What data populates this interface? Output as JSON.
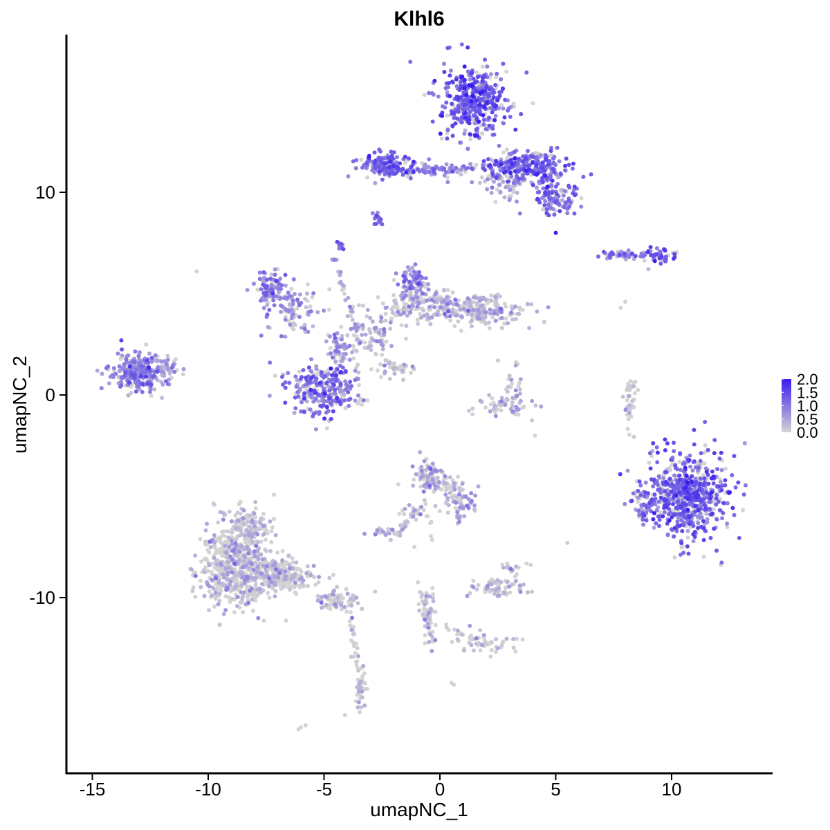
{
  "chart_data": {
    "type": "scatter",
    "title": "Klhl6",
    "xlabel": "umapNC_1",
    "ylabel": "umapNC_2",
    "xlim": [
      -16.5,
      14.5
    ],
    "ylim": [
      -18.5,
      17.8
    ],
    "x_ticks": [
      -15,
      -10,
      -5,
      0,
      5,
      10
    ],
    "x_tick_labels": [
      "-15",
      "-10",
      "-5",
      "0",
      "5",
      "10"
    ],
    "y_ticks": [
      -10,
      0,
      10
    ],
    "y_tick_labels": [
      "-10",
      "0",
      "10"
    ],
    "grid": false,
    "color_scale": {
      "low_color": "#d3d3d3",
      "high_color": "#3a1cf0",
      "min": 0.0,
      "max": 2.0,
      "labels": [
        "2.0",
        "1.5",
        "1.0",
        "0.5",
        "0.0"
      ],
      "values": [
        2.0,
        1.5,
        1.0,
        0.5,
        0.0
      ]
    },
    "legend_placement": "right",
    "clusters": [
      {
        "cx": 1.5,
        "cy": 14.5,
        "sx": 0.9,
        "sy": 1.1,
        "n": 420,
        "expr": 1.25
      },
      {
        "cx": 3.8,
        "cy": 11.3,
        "sx": 1.1,
        "sy": 0.5,
        "n": 260,
        "expr": 1.15
      },
      {
        "cx": 5.0,
        "cy": 9.8,
        "sx": 0.6,
        "sy": 0.5,
        "n": 120,
        "expr": 1.05
      },
      {
        "cx": -2.3,
        "cy": 11.3,
        "sx": 0.7,
        "sy": 0.35,
        "n": 150,
        "expr": 1.2
      },
      {
        "cx": -0.2,
        "cy": 11.1,
        "sx": 1.3,
        "sy": 0.25,
        "n": 70,
        "expr": 0.9
      },
      {
        "cx": 2.8,
        "cy": 10.5,
        "sx": 0.6,
        "sy": 0.6,
        "n": 60,
        "expr": 0.5
      },
      {
        "cx": -2.7,
        "cy": 8.6,
        "sx": 0.15,
        "sy": 0.25,
        "n": 14,
        "expr": 1.0
      },
      {
        "cx": 9.5,
        "cy": 6.9,
        "sx": 0.45,
        "sy": 0.18,
        "n": 45,
        "expr": 1.2
      },
      {
        "cx": 7.8,
        "cy": 6.9,
        "sx": 0.6,
        "sy": 0.12,
        "n": 30,
        "expr": 1.0
      },
      {
        "cx": -4.4,
        "cy": 7.3,
        "sx": 0.15,
        "sy": 0.2,
        "n": 12,
        "expr": 1.0
      },
      {
        "cx": -13.1,
        "cy": 1.1,
        "sx": 0.7,
        "sy": 0.55,
        "n": 260,
        "expr": 0.8
      },
      {
        "cx": -11.9,
        "cy": 1.4,
        "sx": 0.5,
        "sy": 0.4,
        "n": 60,
        "expr": 0.55
      },
      {
        "cx": -7.3,
        "cy": 5.3,
        "sx": 0.45,
        "sy": 0.5,
        "n": 100,
        "expr": 0.85
      },
      {
        "cx": -6.3,
        "cy": 4.1,
        "sx": 0.8,
        "sy": 0.7,
        "n": 90,
        "expr": 0.6
      },
      {
        "cx": -5.1,
        "cy": 0.2,
        "sx": 0.85,
        "sy": 0.75,
        "n": 260,
        "expr": 1.0
      },
      {
        "cx": -4.3,
        "cy": 2.3,
        "sx": 0.35,
        "sy": 0.6,
        "n": 60,
        "expr": 0.55
      },
      {
        "cx": -1.2,
        "cy": 5.6,
        "sx": 0.4,
        "sy": 0.4,
        "n": 70,
        "expr": 0.75
      },
      {
        "cx": -0.5,
        "cy": 4.4,
        "sx": 1.2,
        "sy": 0.5,
        "n": 170,
        "expr": 0.3
      },
      {
        "cx": 1.8,
        "cy": 4.2,
        "sx": 1.1,
        "sy": 0.45,
        "n": 190,
        "expr": 0.2
      },
      {
        "cx": -2.8,
        "cy": 3.0,
        "sx": 0.6,
        "sy": 0.6,
        "n": 70,
        "expr": 0.3
      },
      {
        "cx": -2.0,
        "cy": 1.3,
        "sx": 0.5,
        "sy": 0.3,
        "n": 20,
        "expr": 0.1
      },
      {
        "cx": 2.9,
        "cy": -0.6,
        "sx": 0.7,
        "sy": 0.3,
        "n": 55,
        "expr": 0.2
      },
      {
        "cx": 3.2,
        "cy": 0.6,
        "sx": 0.2,
        "sy": 0.5,
        "n": 20,
        "expr": 0.15
      },
      {
        "cx": 8.2,
        "cy": -0.3,
        "sx": 0.15,
        "sy": 0.9,
        "n": 22,
        "expr": 0.1
      },
      {
        "cx": 10.8,
        "cy": -4.9,
        "sx": 1.1,
        "sy": 1.35,
        "n": 620,
        "expr": 1.15
      },
      {
        "cx": 8.8,
        "cy": -5.3,
        "sx": 0.35,
        "sy": 0.6,
        "n": 60,
        "expr": 1.0
      },
      {
        "cx": -0.5,
        "cy": -3.9,
        "sx": 0.4,
        "sy": 0.5,
        "n": 90,
        "expr": 0.3
      },
      {
        "cx": 0.7,
        "cy": -4.7,
        "sx": 0.6,
        "sy": 0.5,
        "n": 60,
        "expr": 0.25
      },
      {
        "cx": 1.0,
        "cy": -5.4,
        "sx": 0.4,
        "sy": 0.35,
        "n": 20,
        "expr": 0.55
      },
      {
        "cx": -2.3,
        "cy": -6.8,
        "sx": 0.4,
        "sy": 0.2,
        "n": 25,
        "expr": 0.25
      },
      {
        "cx": -1.0,
        "cy": -5.9,
        "sx": 0.6,
        "sy": 0.6,
        "n": 25,
        "expr": 0.1
      },
      {
        "cx": 2.5,
        "cy": -9.5,
        "sx": 0.75,
        "sy": 0.3,
        "n": 70,
        "expr": 0.15
      },
      {
        "cx": -8.8,
        "cy": -8.5,
        "sx": 1.0,
        "sy": 1.15,
        "n": 560,
        "expr": 0.12
      },
      {
        "cx": -8.3,
        "cy": -6.5,
        "sx": 0.6,
        "sy": 0.7,
        "n": 130,
        "expr": 0.15
      },
      {
        "cx": -6.8,
        "cy": -8.9,
        "sx": 0.9,
        "sy": 0.45,
        "n": 200,
        "expr": 0.08
      },
      {
        "cx": -4.5,
        "cy": -10.1,
        "sx": 0.6,
        "sy": 0.25,
        "n": 70,
        "expr": 0.05
      },
      {
        "cx": -3.4,
        "cy": -14.5,
        "sx": 0.15,
        "sy": 0.6,
        "n": 35,
        "expr": 0.05
      },
      {
        "cx": -0.5,
        "cy": -11.0,
        "sx": 0.2,
        "sy": 0.9,
        "n": 40,
        "expr": 0.05
      },
      {
        "cx": 2.0,
        "cy": -12.3,
        "sx": 0.9,
        "sy": 0.35,
        "n": 45,
        "expr": 0.05
      },
      {
        "cx": 0.8,
        "cy": -6.0,
        "sx": 0.2,
        "sy": 0.2,
        "n": 10,
        "expr": 0.4
      },
      {
        "cx": 3.0,
        "cy": -8.5,
        "sx": 0.3,
        "sy": 0.3,
        "n": 15,
        "expr": 0.1
      }
    ],
    "paths": [
      {
        "from": [
          -4.6,
          6.8
        ],
        "to": [
          -3.6,
          3.2
        ],
        "n": 30,
        "expr": 0.3
      },
      {
        "from": [
          -2.5,
          1.8
        ],
        "to": [
          -1.2,
          0.8
        ],
        "n": 18,
        "expr": 0.05
      },
      {
        "from": [
          -3.7,
          1.8
        ],
        "to": [
          -3.4,
          -0.6
        ],
        "n": 10,
        "expr": 0.05
      },
      {
        "from": [
          -4.0,
          -10.2
        ],
        "to": [
          -3.4,
          -14.3
        ],
        "n": 30,
        "expr": 0.05
      },
      {
        "from": [
          -0.9,
          -9.3
        ],
        "to": [
          -0.3,
          -12.2
        ],
        "n": 30,
        "expr": 0.05
      },
      {
        "from": [
          0.2,
          -11.4
        ],
        "to": [
          2.2,
          -12.3
        ],
        "n": 20,
        "expr": 0.05
      },
      {
        "from": [
          -1.9,
          -6.9
        ],
        "to": [
          -0.8,
          -5.5
        ],
        "n": 20,
        "expr": 0.1
      },
      {
        "from": [
          8.1,
          -2.0
        ],
        "to": [
          8.4,
          1.0
        ],
        "n": 20,
        "expr": 0.1
      },
      {
        "from": [
          7.0,
          7.0
        ],
        "to": [
          9.2,
          6.8
        ],
        "n": 25,
        "expr": 0.9
      },
      {
        "from": [
          -3.2,
          11.1
        ],
        "to": [
          1.0,
          11.1
        ],
        "n": 30,
        "expr": 0.8
      }
    ],
    "singles": [
      [
        -10.5,
        6.1,
        0.0
      ],
      [
        8.0,
        4.6,
        0.0
      ],
      [
        7.8,
        4.3,
        0.0
      ],
      [
        5.0,
        8.0,
        2.0
      ],
      [
        2.5,
        4.9,
        0.1
      ],
      [
        4.5,
        3.6,
        0.1
      ],
      [
        2.5,
        1.7,
        0.1
      ],
      [
        4.1,
        -2.0,
        0.0
      ],
      [
        -5.8,
        -16.3,
        0.0
      ],
      [
        -6.1,
        -16.5,
        0.0
      ],
      [
        -6.0,
        -16.4,
        0.0
      ],
      [
        0.6,
        -14.3,
        0.0
      ],
      [
        -4.1,
        -15.8,
        0.0
      ],
      [
        0.5,
        -14.2,
        0.0
      ],
      [
        -2.8,
        -9.7,
        0.1
      ],
      [
        -0.2,
        -12.1,
        0.8
      ],
      [
        -4.7,
        1.3,
        2.0
      ],
      [
        9.9,
        -6.2,
        2.0
      ],
      [
        5.5,
        -7.3,
        0.1
      ],
      [
        -1.1,
        -7.5,
        0.0
      ],
      [
        3.1,
        -8.7,
        0.1
      ],
      [
        9.0,
        6.2,
        0.3
      ]
    ]
  }
}
